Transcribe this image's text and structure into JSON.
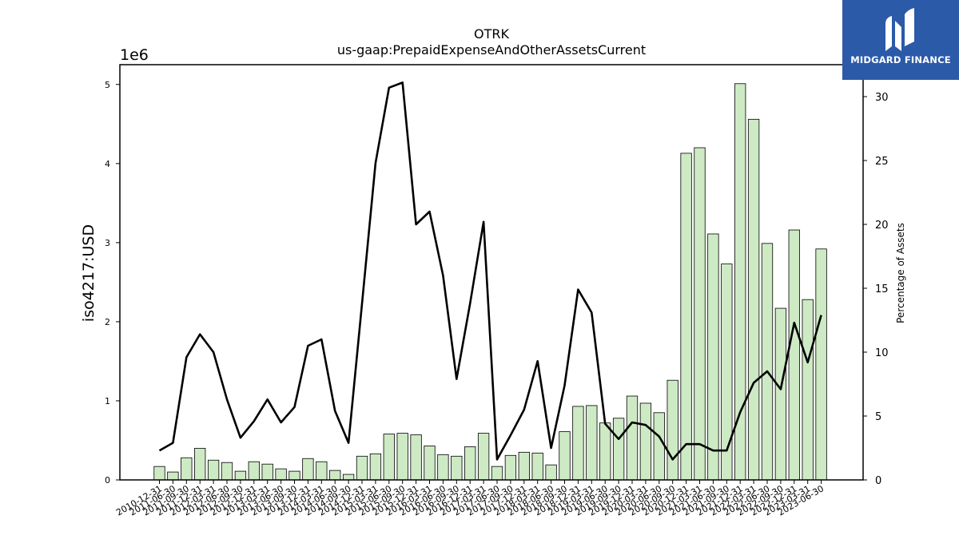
{
  "chart_data": {
    "type": "bar+line",
    "title": "OTRK",
    "subtitle": "us-gaap:PrepaidExpenseAndOtherAssetsCurrent",
    "ylabel": "iso4217:USD",
    "y_offset_label": "1e6",
    "y2label": "Percentage of Assets",
    "ylim": [
      0,
      5250000
    ],
    "y2lim": [
      0,
      32.5
    ],
    "yticks": [
      0,
      1,
      2,
      3,
      4,
      5
    ],
    "y2ticks": [
      0,
      5,
      10,
      15,
      20,
      25,
      30
    ],
    "bar_color": "#cdeac4",
    "line_color": "#000000",
    "categories": [
      "2010-12-31",
      "2011-06-30",
      "2011-09-30",
      "2011-12-31",
      "2012-03-31",
      "2012-06-30",
      "2012-09-30",
      "2012-12-31",
      "2013-03-31",
      "2013-06-30",
      "2013-09-30",
      "2013-12-31",
      "2014-03-31",
      "2014-06-30",
      "2014-09-30",
      "2014-12-31",
      "2015-03-31",
      "2015-06-30",
      "2015-09-30",
      "2015-12-31",
      "2016-03-31",
      "2016-06-30",
      "2016-09-30",
      "2016-12-31",
      "2017-03-31",
      "2017-06-30",
      "2017-09-30",
      "2017-12-31",
      "2018-03-31",
      "2018-06-30",
      "2018-09-30",
      "2018-12-31",
      "2019-03-31",
      "2019-06-30",
      "2019-09-30",
      "2019-12-31",
      "2020-03-31",
      "2020-06-30",
      "2020-09-30",
      "2020-12-31",
      "2021-03-31",
      "2021-06-30",
      "2021-09-30",
      "2021-12-31",
      "2022-03-31",
      "2022-06-30",
      "2022-09-30",
      "2022-12-31",
      "2023-03-31",
      "2023-06-30"
    ],
    "series": [
      {
        "kind": "bar",
        "axis": "left",
        "values": [
          170000,
          100000,
          280000,
          400000,
          250000,
          220000,
          110000,
          230000,
          200000,
          140000,
          110000,
          270000,
          230000,
          120000,
          70000,
          300000,
          330000,
          580000,
          590000,
          570000,
          430000,
          320000,
          300000,
          420000,
          590000,
          170000,
          310000,
          350000,
          340000,
          190000,
          610000,
          930000,
          940000,
          720000,
          780000,
          1060000,
          970000,
          850000,
          1260000,
          4130000,
          4200000,
          3110000,
          2730000,
          5010000,
          4560000,
          2990000,
          2170000,
          3160000,
          2280000,
          2920000
        ]
      },
      {
        "kind": "line",
        "axis": "right",
        "values": [
          2.3,
          2.9,
          9.6,
          11.4,
          10.0,
          6.3,
          3.3,
          4.6,
          6.3,
          4.5,
          5.7,
          10.5,
          11.0,
          5.4,
          2.9,
          13.8,
          24.8,
          30.7,
          31.1,
          20.0,
          21.0,
          16.0,
          7.9,
          13.8,
          20.2,
          1.6,
          3.5,
          5.5,
          9.3,
          2.5,
          7.4,
          14.9,
          13.1,
          4.4,
          3.2,
          4.5,
          4.3,
          3.4,
          1.6,
          2.8,
          2.8,
          2.3,
          2.3,
          5.3,
          7.6,
          8.5,
          7.1,
          12.3,
          9.2,
          12.9
        ]
      }
    ]
  },
  "logo": {
    "text": "MIDGARD FINANCE",
    "icon": "midgard-logo-icon",
    "background": "#2b5aa8"
  }
}
